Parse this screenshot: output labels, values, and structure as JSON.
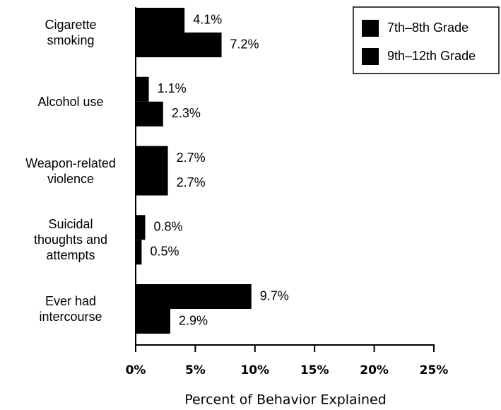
{
  "chart_data": {
    "type": "barh",
    "categories": [
      "Cigarette\nsmoking",
      "Alcohol use",
      "Weapon-related\nviolence",
      "Suicidal\nthoughts and\nattempts",
      "Ever had\nintercourse"
    ],
    "series": [
      {
        "name": "7th–8th Grade",
        "color": "#000000",
        "values": [
          4.1,
          1.1,
          2.7,
          0.8,
          9.7
        ],
        "value_labels": [
          "4.1%",
          "1.1%",
          "2.7%",
          "0.8%",
          "9.7%"
        ]
      },
      {
        "name": "9th–12th Grade",
        "color": "#000000",
        "values": [
          7.2,
          2.3,
          2.7,
          0.5,
          2.9
        ],
        "value_labels": [
          "7.2%",
          "2.3%",
          "2.7%",
          "0.5%",
          "2.9%"
        ]
      }
    ],
    "xlabel": "Percent of Behavior Explained",
    "xlim": [
      0,
      25
    ],
    "xticks": [
      {
        "value": 0,
        "label": "0%"
      },
      {
        "value": 5,
        "label": "5%"
      },
      {
        "value": 10,
        "label": "10%"
      },
      {
        "value": 15,
        "label": "15%"
      },
      {
        "value": 20,
        "label": "20%"
      },
      {
        "value": 25,
        "label": "25%"
      }
    ],
    "legend": "top-right"
  }
}
